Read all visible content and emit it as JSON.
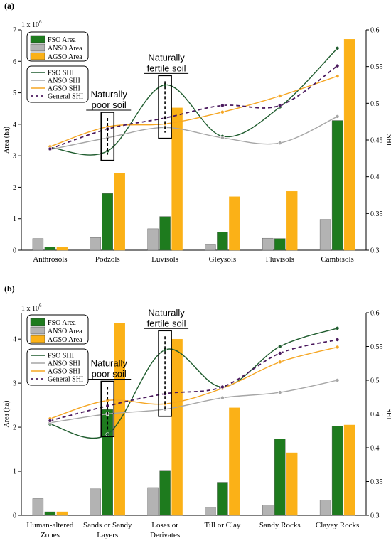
{
  "chart_data": [
    {
      "panel": "(a)",
      "type": "bar",
      "categories": [
        "Anthrosols",
        "Podzols",
        "Luvisols",
        "Gleysols",
        "Fluvisols",
        "Cambisols"
      ],
      "y_multiplier": "1 x 10",
      "y_multiplier_exp": "6",
      "ylabel": "Area (ha)",
      "ylim": [
        0,
        7
      ],
      "yticks": [
        0,
        1,
        2,
        3,
        4,
        5,
        6,
        7
      ],
      "y2label": "SHI",
      "y2lim": [
        0.3,
        0.6
      ],
      "y2ticks": [
        0.3,
        0.35,
        0.4,
        0.45,
        0.5,
        0.55,
        0.6
      ],
      "bar_series": [
        {
          "name": "ANSO Area",
          "color": "#b3b3b3",
          "values": [
            0.37,
            0.4,
            0.68,
            0.17,
            0.38,
            0.98
          ]
        },
        {
          "name": "FSO Area",
          "color": "#1e7b1e",
          "values": [
            0.1,
            1.8,
            1.07,
            0.57,
            0.37,
            4.12
          ]
        },
        {
          "name": "AGSO Area",
          "color": "#fbb117",
          "values": [
            0.09,
            2.45,
            4.52,
            1.7,
            1.87,
            6.7
          ]
        }
      ],
      "line_series": [
        {
          "name": "FSO SHI",
          "color": "#1f5c2e",
          "values": [
            0.44,
            0.435,
            0.525,
            0.455,
            0.495,
            0.575
          ]
        },
        {
          "name": "ANSO SHI",
          "color": "#a6a6a6",
          "values": [
            0.437,
            0.453,
            0.467,
            0.453,
            0.446,
            0.482
          ]
        },
        {
          "name": "AGSO SHI",
          "color": "#f5a623",
          "values": [
            0.441,
            0.468,
            0.472,
            0.488,
            0.51,
            0.537
          ]
        },
        {
          "name": "General SHI",
          "color": "#4b1a5e",
          "dashed": true,
          "values": [
            0.438,
            0.465,
            0.48,
            0.497,
            0.497,
            0.551
          ]
        }
      ],
      "annotations": [
        {
          "lines": [
            "Naturally",
            "poor soil"
          ],
          "category": "Podzols",
          "range": [
            0.43,
            0.48
          ]
        },
        {
          "lines": [
            "Naturally",
            "fertile soil"
          ],
          "category": "Luvisols",
          "range": [
            0.46,
            0.53
          ]
        }
      ]
    },
    {
      "panel": "(b)",
      "type": "bar",
      "categories": [
        [
          "Human-altered",
          "Zones"
        ],
        [
          "Sands or Sandy",
          "Layers"
        ],
        [
          "Loses or",
          "Derivates"
        ],
        [
          "Till or Clay"
        ],
        [
          "Sandy Rocks"
        ],
        [
          "Clayey Rocks"
        ]
      ],
      "y_multiplier": "1 x 10",
      "y_multiplier_exp": "6",
      "ylabel": "Area (ha)",
      "ylim": [
        0,
        4.6
      ],
      "yticks": [
        0,
        1,
        2,
        3,
        4
      ],
      "y2label": "SHI",
      "y2lim": [
        0.3,
        0.6
      ],
      "y2ticks": [
        0.3,
        0.35,
        0.4,
        0.45,
        0.5,
        0.55,
        0.6
      ],
      "bar_series": [
        {
          "name": "ANSO Area",
          "color": "#b3b3b3",
          "values": [
            0.38,
            0.6,
            0.63,
            0.18,
            0.23,
            0.35
          ]
        },
        {
          "name": "FSO Area",
          "color": "#1e7b1e",
          "values": [
            0.08,
            2.4,
            1.02,
            0.75,
            1.73,
            2.03
          ]
        },
        {
          "name": "AGSO Area",
          "color": "#fbb117",
          "values": [
            0.08,
            4.37,
            4.0,
            2.44,
            1.42,
            2.05
          ]
        }
      ],
      "line_series": [
        {
          "name": "FSO SHI",
          "color": "#1f5c2e",
          "values": [
            0.435,
            0.42,
            0.545,
            0.49,
            0.55,
            0.577
          ]
        },
        {
          "name": "ANSO SHI",
          "color": "#a6a6a6",
          "values": [
            0.437,
            0.45,
            0.457,
            0.474,
            0.482,
            0.5
          ]
        },
        {
          "name": "AGSO SHI",
          "color": "#f5a623",
          "values": [
            0.443,
            0.47,
            0.465,
            0.488,
            0.527,
            0.549
          ]
        },
        {
          "name": "General SHI",
          "color": "#4b1a5e",
          "dashed": true,
          "values": [
            0.44,
            0.462,
            0.48,
            0.49,
            0.54,
            0.56
          ]
        }
      ],
      "annotations": [
        {
          "lines": [
            "Naturally",
            "poor soil"
          ],
          "category": "Sands or Sandy Layers",
          "range": [
            0.425,
            0.49
          ]
        },
        {
          "lines": [
            "Naturally",
            "fertile soil"
          ],
          "category": "Loses or Derivates",
          "range": [
            0.455,
            0.565
          ]
        }
      ]
    }
  ]
}
